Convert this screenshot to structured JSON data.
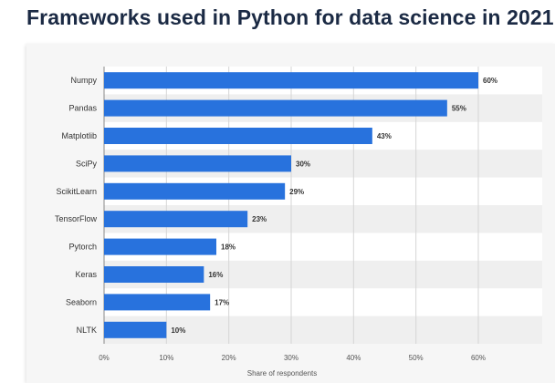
{
  "page": {
    "title": "Frameworks used in Python for data science in 2021"
  },
  "chart_data": {
    "type": "bar",
    "orientation": "horizontal",
    "categories": [
      "Numpy",
      "Pandas",
      "Matplotlib",
      "SciPy",
      "ScikitLearn",
      "TensorFlow",
      "Pytorch",
      "Keras",
      "Seaborn",
      "NLTK"
    ],
    "values": [
      60,
      55,
      43,
      30,
      29,
      23,
      18,
      16,
      17,
      10
    ],
    "value_labels": [
      "60%",
      "55%",
      "43%",
      "30%",
      "29%",
      "23%",
      "18%",
      "16%",
      "17%",
      "10%"
    ],
    "title": "Frameworks used in Python for data science in 2021",
    "xlabel": "Share of respondents",
    "ylabel": "",
    "xlim": [
      0,
      60
    ],
    "x_ticks": [
      0,
      10,
      20,
      30,
      40,
      50,
      60
    ],
    "x_tick_labels": [
      "0%",
      "10%",
      "20%",
      "30%",
      "40%",
      "50%",
      "60%"
    ],
    "grid": true,
    "legend": "none",
    "colors": {
      "bar": "#2872dd",
      "row_stripe": "#efefef",
      "panel": "#ffffff",
      "grid": "#d6d6d6"
    }
  }
}
